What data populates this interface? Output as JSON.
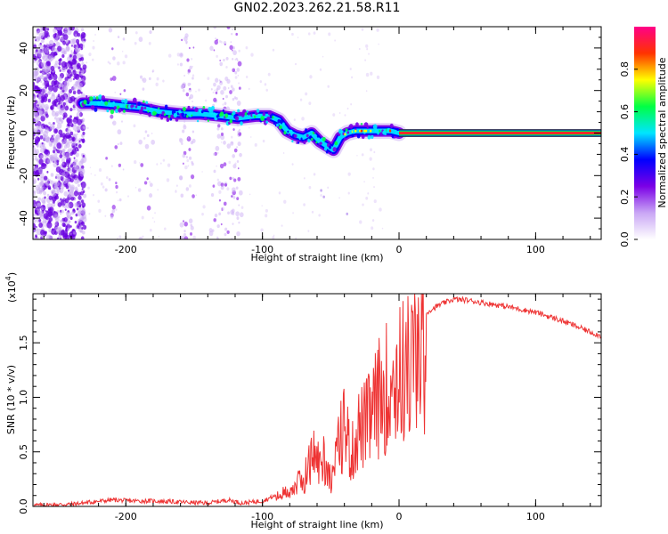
{
  "title": "GN02.2023.262.21.58.R11",
  "chart_data": [
    {
      "type": "heatmap",
      "xlabel": "Height of straight line (km)",
      "ylabel": "Frequency (Hz)",
      "xlim": [
        -268,
        148
      ],
      "ylim": [
        -50,
        50
      ],
      "xticks": [
        -200,
        -100,
        0,
        100
      ],
      "yticks": [
        -40,
        -20,
        0,
        20,
        40
      ],
      "grid": false,
      "colorbar": {
        "label": "Normalized spectral amplitude",
        "range": [
          0.0,
          1.0
        ],
        "ticks": [
          0.0,
          0.2,
          0.4,
          0.6,
          0.8
        ],
        "colors": [
          "#ffffff",
          "#c9a6f5",
          "#7b00e6",
          "#0000ff",
          "#00e5ff",
          "#00ff44",
          "#ffff00",
          "#ff3300",
          "#ff0088"
        ]
      },
      "trace": {
        "x": [
          -232,
          -220,
          -205,
          -190,
          -175,
          -160,
          -145,
          -130,
          -118,
          -105,
          -95,
          -88,
          -82,
          -76,
          -70,
          -64,
          -58,
          -53,
          -48,
          -43,
          -38,
          -32,
          -25,
          -18,
          -12,
          -6,
          0
        ],
        "y": [
          14,
          14,
          13,
          12,
          10,
          9,
          9,
          8,
          7,
          8,
          8,
          6,
          1,
          -1,
          -2,
          0,
          -4,
          -6,
          -8,
          -2,
          0,
          1,
          1,
          1,
          1,
          1,
          0
        ]
      },
      "carrier": {
        "x_start": 0,
        "x_end": 148,
        "y": 0
      }
    },
    {
      "type": "line",
      "xlabel": "Height of straight line (km)",
      "ylabel": "SNR (10 * v/v)",
      "scale_label": "(x10",
      "scale_exponent": "4",
      "scale_close": ")",
      "xlim": [
        -268,
        148
      ],
      "ylim": [
        0,
        1.95
      ],
      "xticks": [
        -200,
        -100,
        0,
        100
      ],
      "yticks": [
        0.0,
        0.5,
        1.0,
        1.5
      ],
      "ytick_labels": [
        "0.0",
        "0.5",
        "1.0",
        "1.5"
      ],
      "line_color": "#ee3333",
      "series": [
        {
          "x": [
            -268,
            -240,
            -210,
            -195,
            -180,
            -160,
            -140,
            -125,
            -115,
            -100,
            -90,
            -80,
            -70,
            -62,
            -58,
            -55,
            -50,
            -45,
            -40,
            -35,
            -30,
            -25,
            -20,
            -15,
            -10,
            -5,
            0,
            10,
            20,
            30,
            40,
            50,
            60,
            80,
            100,
            120,
            140,
            148
          ],
          "y": [
            0.01,
            0.02,
            0.06,
            0.05,
            0.05,
            0.04,
            0.03,
            0.06,
            0.03,
            0.05,
            0.1,
            0.18,
            0.3,
            0.6,
            0.45,
            0.55,
            0.3,
            0.6,
            0.95,
            0.55,
            0.85,
            0.9,
            1.0,
            1.2,
            1.3,
            1.4,
            1.45,
            1.6,
            1.78,
            1.85,
            1.9,
            1.89,
            1.87,
            1.83,
            1.78,
            1.7,
            1.6,
            1.56
          ]
        }
      ]
    }
  ]
}
